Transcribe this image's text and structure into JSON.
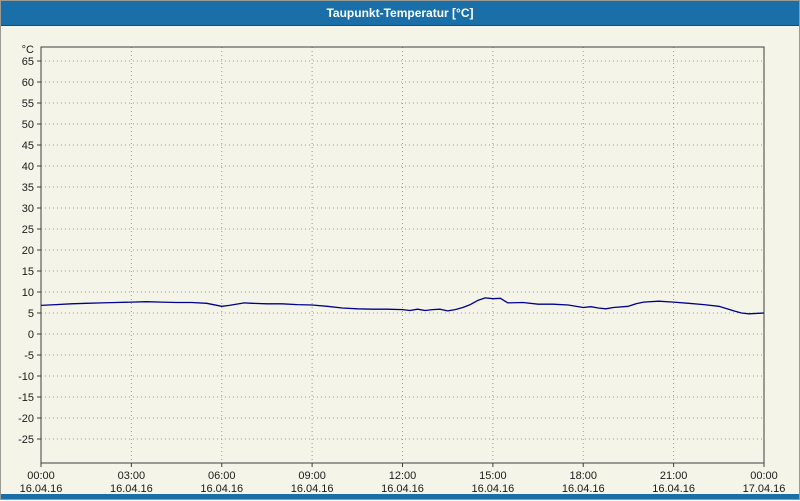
{
  "title_bar": {
    "title": "Taupunkt-Temperatur [°C]"
  },
  "colors": {
    "title_bg": "#1a6fa8",
    "title_text": "#ffffff",
    "chart_bg": "#f4f4e8",
    "line": "#00008b",
    "grid": "#9a9a9a",
    "frame": "#404040",
    "label": "#1a1a1a",
    "bottom_strip": "#1a6fa8"
  },
  "chart_data": {
    "type": "line",
    "title": "Taupunkt-Temperatur [°C]",
    "y_unit": "°C",
    "ylim": [
      -31,
      68
    ],
    "grid": "dashed",
    "legend": "none",
    "y_ticks": [
      65,
      60,
      55,
      50,
      45,
      40,
      35,
      30,
      25,
      20,
      15,
      10,
      5,
      0,
      -5,
      -10,
      -15,
      -20,
      -25
    ],
    "x_ticks": [
      {
        "hour": 0,
        "time": "00:00",
        "date": "16.04.16"
      },
      {
        "hour": 3,
        "time": "03:00",
        "date": "16.04.16"
      },
      {
        "hour": 6,
        "time": "06:00",
        "date": "16.04.16"
      },
      {
        "hour": 9,
        "time": "09:00",
        "date": "16.04.16"
      },
      {
        "hour": 12,
        "time": "12:00",
        "date": "16.04.16"
      },
      {
        "hour": 15,
        "time": "15:00",
        "date": "16.04.16"
      },
      {
        "hour": 18,
        "time": "18:00",
        "date": "16.04.16"
      },
      {
        "hour": 21,
        "time": "21:00",
        "date": "16.04.16"
      },
      {
        "hour": 24,
        "time": "00:00",
        "date": "17.04.16"
      }
    ],
    "series": [
      {
        "name": "Taupunkt-Temperatur",
        "x": [
          0,
          0.5,
          1,
          1.5,
          2,
          2.5,
          3,
          3.5,
          4,
          4.5,
          5,
          5.5,
          6,
          6.25,
          6.75,
          7,
          7.5,
          8,
          8.5,
          9,
          9.5,
          10,
          10.5,
          11,
          11.5,
          12,
          12.25,
          12.5,
          12.75,
          13,
          13.25,
          13.5,
          13.75,
          14,
          14.25,
          14.5,
          14.75,
          15,
          15.25,
          15.5,
          16,
          16.5,
          17,
          17.5,
          18,
          18.25,
          18.5,
          18.75,
          19,
          19.5,
          19.75,
          20,
          20.5,
          21,
          21.5,
          22,
          22.5,
          23,
          23.25,
          23.5,
          24
        ],
        "values": [
          6.8,
          7.0,
          7.2,
          7.3,
          7.4,
          7.5,
          7.6,
          7.7,
          7.6,
          7.5,
          7.5,
          7.3,
          6.6,
          6.8,
          7.4,
          7.3,
          7.2,
          7.2,
          7.0,
          6.9,
          6.6,
          6.2,
          6.0,
          5.9,
          5.9,
          5.8,
          5.6,
          5.9,
          5.6,
          5.8,
          5.9,
          5.5,
          5.8,
          6.3,
          7.0,
          8.0,
          8.6,
          8.4,
          8.5,
          7.4,
          7.5,
          7.1,
          7.1,
          6.9,
          6.3,
          6.5,
          6.2,
          6.0,
          6.3,
          6.6,
          7.2,
          7.6,
          7.8,
          7.6,
          7.3,
          7.0,
          6.6,
          5.5,
          5.0,
          4.8,
          5.0
        ]
      }
    ]
  }
}
